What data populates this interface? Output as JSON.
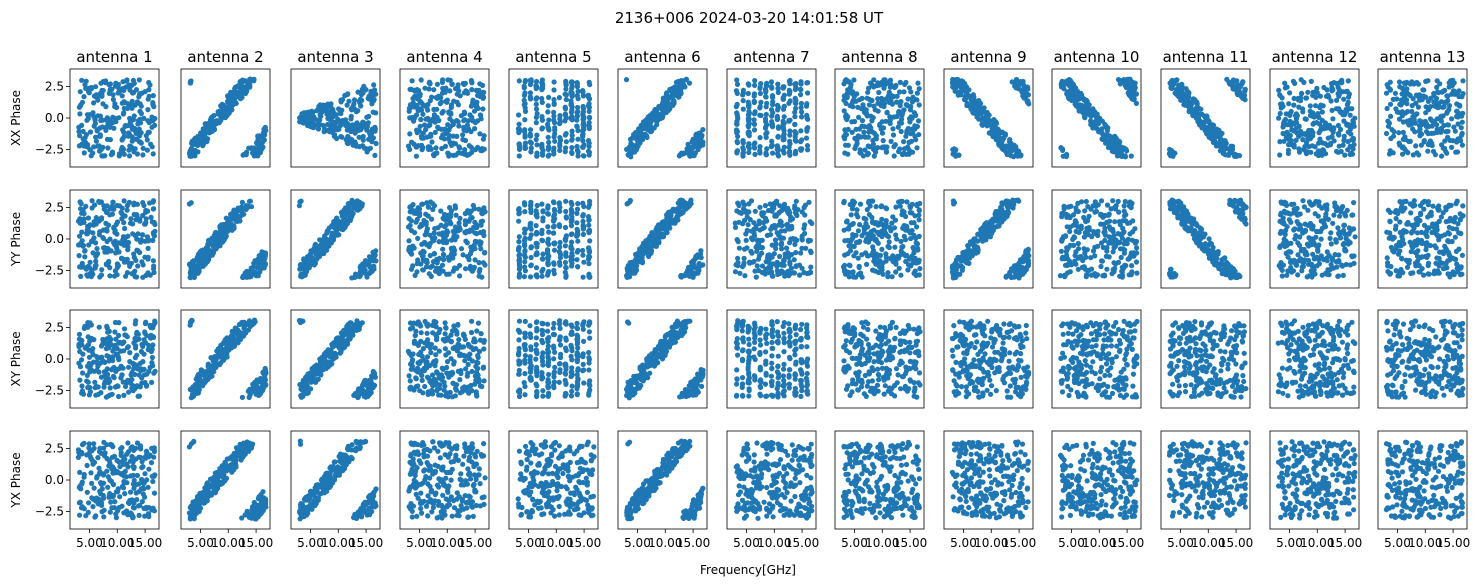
{
  "chart_data": {
    "type": "scatter",
    "title": "2136+006 2024-03-20 14:01:58 UT",
    "xlabel": "Frequency[GHz]",
    "row_labels": [
      "XX Phase",
      "YY Phase",
      "XY Phase",
      "YX Phase"
    ],
    "panel_titles": [
      "antenna 1",
      "antenna 2",
      "antenna 3",
      "antenna 4",
      "antenna 5",
      "antenna 6",
      "antenna 7",
      "antenna 8",
      "antenna 9",
      "antenna 10",
      "antenna 11",
      "antenna 12",
      "antenna 13"
    ],
    "xlim": [
      1.5,
      17.5
    ],
    "ylim": [
      -3.9,
      3.9
    ],
    "x_ticks": [
      5.0,
      10.0,
      15.0
    ],
    "x_tick_labels": [
      "5.00",
      "10.00",
      "15.00"
    ],
    "y_ticks": [
      2.5,
      0.0,
      -2.5
    ],
    "y_tick_labels": [
      "2.5",
      "0.0",
      "−2.5"
    ],
    "grid": false,
    "marker_color": "#1f77b4",
    "panel_patterns": [
      [
        "random",
        "wrap_up",
        "spread_lo",
        "random",
        "stripes",
        "wrap_up",
        "stripes",
        "random",
        "wrap_dn",
        "wrap_dn",
        "wrap_dn",
        "random",
        "random"
      ],
      [
        "random",
        "wrap_up",
        "wrap_up",
        "random",
        "stripes",
        "wrap_up",
        "random",
        "random",
        "wrap_up",
        "random",
        "wrap_dn",
        "random",
        "random"
      ],
      [
        "random",
        "wrap_up",
        "wrap_up",
        "random",
        "stripes",
        "wrap_up",
        "stripes",
        "random",
        "random",
        "random",
        "random",
        "random",
        "random"
      ],
      [
        "random",
        "wrap_up",
        "wrap_up",
        "random",
        "random",
        "wrap_up",
        "random",
        "random",
        "random",
        "random",
        "random",
        "random",
        "random"
      ]
    ]
  }
}
